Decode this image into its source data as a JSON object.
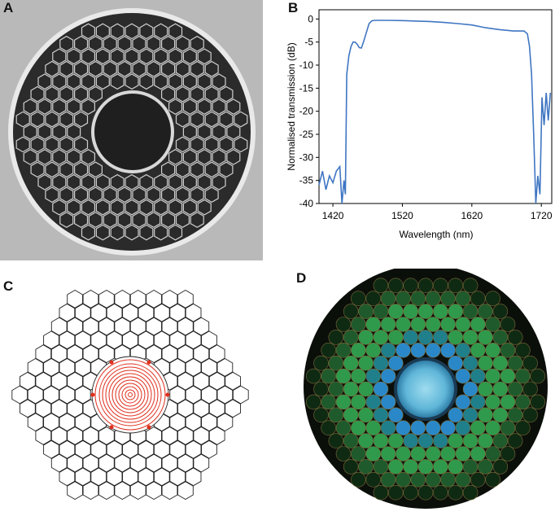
{
  "figure": {
    "panels": {
      "a": {
        "label": "A"
      },
      "b": {
        "label": "B"
      },
      "c": {
        "label": "C"
      },
      "d": {
        "label": "D"
      }
    }
  },
  "chart_data": {
    "type": "line",
    "title": "",
    "xlabel": "Wavelength (nm)",
    "ylabel": "Normalised transmission (dB)",
    "xlim": [
      1400,
      1735
    ],
    "ylim": [
      -40,
      2
    ],
    "xticks": [
      1420,
      1520,
      1620,
      1720
    ],
    "yticks": [
      0,
      -5,
      -10,
      -15,
      -20,
      -25,
      -30,
      -35,
      -40
    ],
    "grid": false,
    "legend": "none",
    "color": "#3f76c2",
    "x": [
      1400,
      1405,
      1410,
      1415,
      1420,
      1425,
      1430,
      1433,
      1436,
      1438,
      1440,
      1443,
      1446,
      1449,
      1452,
      1455,
      1458,
      1461,
      1464,
      1468,
      1472,
      1476,
      1480,
      1500,
      1520,
      1540,
      1560,
      1580,
      1600,
      1620,
      1640,
      1660,
      1680,
      1695,
      1700,
      1703,
      1706,
      1709,
      1712,
      1715,
      1718,
      1721,
      1724,
      1727,
      1730,
      1733
    ],
    "y": [
      -36,
      -33,
      -37,
      -34,
      -35.5,
      -33,
      -32,
      -40,
      -35,
      -38,
      -12,
      -8,
      -6,
      -5,
      -5,
      -5.5,
      -6.2,
      -6.3,
      -5,
      -3,
      -1,
      -0.4,
      -0.3,
      -0.3,
      -0.35,
      -0.45,
      -0.55,
      -0.75,
      -1,
      -1.3,
      -1.9,
      -2.3,
      -2.6,
      -2.6,
      -3.2,
      -6,
      -12,
      -25,
      -40,
      -34,
      -38,
      -17,
      -23,
      -16,
      -22,
      -16
    ]
  }
}
